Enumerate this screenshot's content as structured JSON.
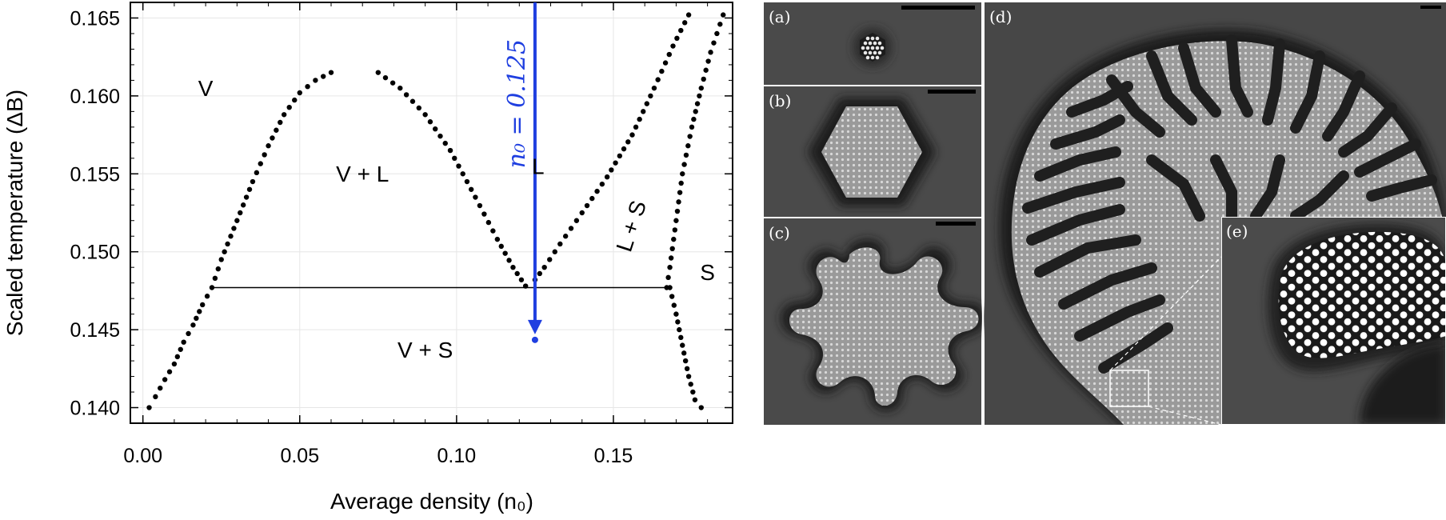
{
  "chart_data": {
    "type": "scatter",
    "title": "",
    "xlabel": "Average density (n₀)",
    "ylabel": "Scaled temperature (ΔB)",
    "xlim": [
      -0.004,
      0.188
    ],
    "ylim": [
      0.139,
      0.166
    ],
    "xticks": [
      "0.00",
      "0.05",
      "0.10",
      "0.15"
    ],
    "xtick_values": [
      0.0,
      0.05,
      0.1,
      0.15
    ],
    "yticks": [
      "0.140",
      "0.145",
      "0.150",
      "0.155",
      "0.160",
      "0.165"
    ],
    "ytick_values": [
      0.14,
      0.145,
      0.15,
      0.155,
      0.16,
      0.165
    ],
    "grid": true,
    "series": [
      {
        "points": [
          [
            0.002,
            0.14
          ],
          [
            0.004,
            0.1407
          ],
          [
            0.007,
            0.1418
          ],
          [
            0.01,
            0.1428
          ],
          [
            0.013,
            0.1442
          ],
          [
            0.016,
            0.1453
          ],
          [
            0.019,
            0.1466
          ],
          [
            0.022,
            0.1477
          ],
          [
            0.025,
            0.1495
          ],
          [
            0.03,
            0.152
          ],
          [
            0.035,
            0.1545
          ],
          [
            0.04,
            0.1568
          ],
          [
            0.045,
            0.1588
          ],
          [
            0.05,
            0.1602
          ],
          [
            0.055,
            0.161
          ],
          [
            0.06,
            0.1615
          ]
        ]
      },
      {
        "points": [
          [
            0.075,
            0.1615
          ],
          [
            0.082,
            0.1605
          ],
          [
            0.09,
            0.1588
          ],
          [
            0.098,
            0.1565
          ],
          [
            0.106,
            0.1535
          ],
          [
            0.113,
            0.1508
          ],
          [
            0.118,
            0.149
          ],
          [
            0.122,
            0.1478
          ]
        ]
      },
      {
        "points": [
          [
            0.125,
            0.1482
          ],
          [
            0.128,
            0.149
          ],
          [
            0.133,
            0.1505
          ],
          [
            0.14,
            0.1525
          ],
          [
            0.148,
            0.1548
          ],
          [
            0.156,
            0.1575
          ],
          [
            0.163,
            0.1605
          ],
          [
            0.169,
            0.1632
          ],
          [
            0.174,
            0.1652
          ]
        ]
      },
      {
        "points": [
          [
            0.167,
            0.1477
          ],
          [
            0.168,
            0.149
          ],
          [
            0.17,
            0.152
          ],
          [
            0.172,
            0.155
          ],
          [
            0.175,
            0.158
          ],
          [
            0.178,
            0.1605
          ],
          [
            0.181,
            0.1628
          ],
          [
            0.185,
            0.1652
          ]
        ]
      },
      {
        "points": [
          [
            0.168,
            0.1477
          ],
          [
            0.17,
            0.146
          ],
          [
            0.172,
            0.144
          ],
          [
            0.174,
            0.142
          ],
          [
            0.176,
            0.1405
          ],
          [
            0.178,
            0.14
          ]
        ]
      }
    ],
    "tie_line": {
      "x": [
        0.022,
        0.168
      ],
      "y": 0.1477
    },
    "path_arrow": {
      "x": 0.125,
      "y_from": 0.166,
      "y_to": 0.1445,
      "label": "n₀ = 0.125",
      "color": "#1f3fe0"
    },
    "region_labels": [
      {
        "text": "V",
        "x": 0.02,
        "y": 0.16
      },
      {
        "text": "V + L",
        "x": 0.07,
        "y": 0.1545
      },
      {
        "text": "L",
        "x": 0.126,
        "y": 0.155
      },
      {
        "text": "L + S",
        "x": 0.158,
        "y": 0.1515
      },
      {
        "text": "S",
        "x": 0.18,
        "y": 0.1482
      },
      {
        "text": "V + S",
        "x": 0.09,
        "y": 0.1432
      }
    ]
  },
  "panels": {
    "a": "(a)",
    "b": "(b)",
    "c": "(c)",
    "d": "(d)",
    "e": "(e)"
  },
  "colors": {
    "panel_bg": "#4a4a4a",
    "crystal": "#a8a8a8",
    "depletion": "#262626",
    "arrow": "#1f3fe0"
  }
}
